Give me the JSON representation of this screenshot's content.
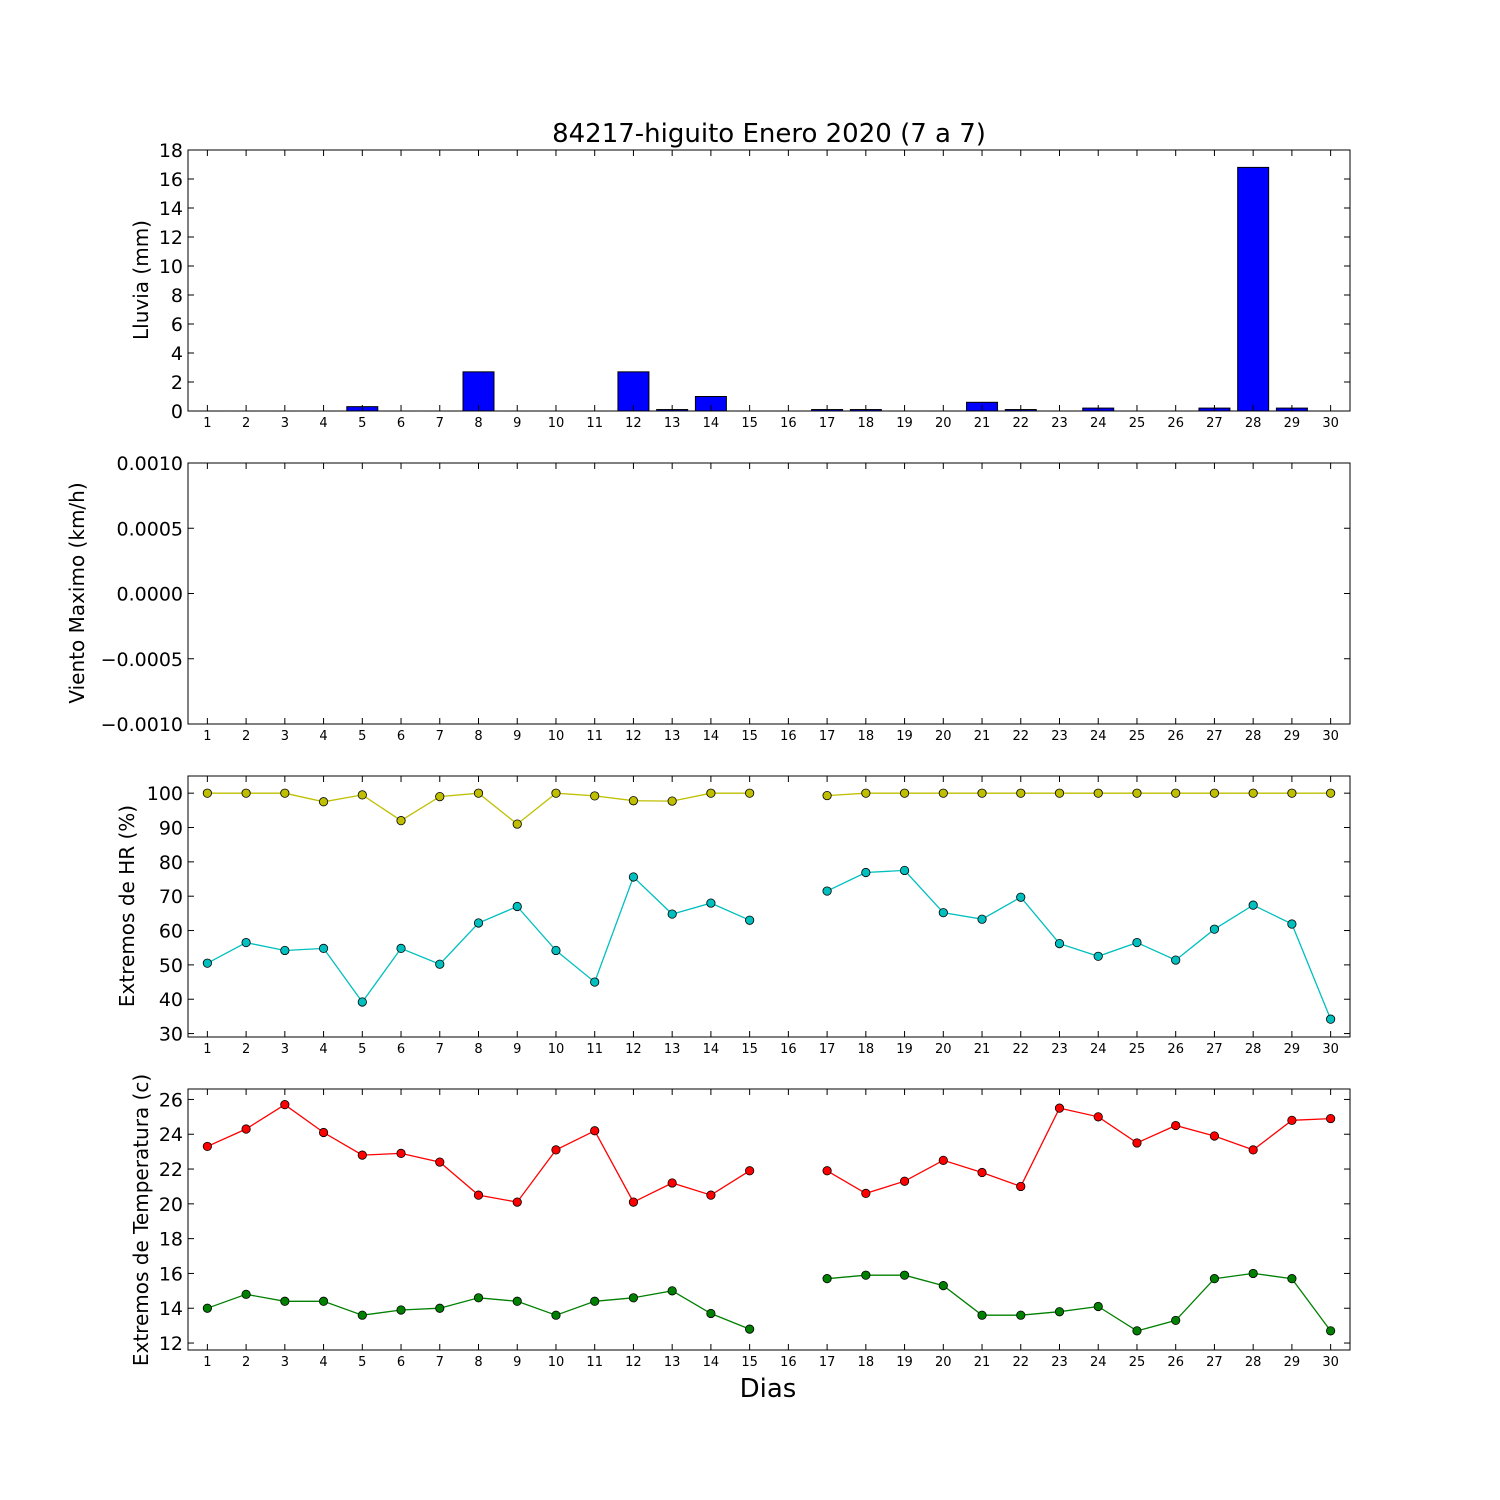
{
  "chart_data": [
    {
      "type": "bar",
      "title": "84217-higuito Enero 2020  (7 a 7)",
      "ylabel": "Lluvia (mm)",
      "xlabel": "",
      "ylim": [
        0,
        18
      ],
      "yticks": [
        "0",
        "2",
        "4",
        "6",
        "8",
        "10",
        "12",
        "14",
        "16",
        "18"
      ],
      "x": [
        1,
        2,
        3,
        4,
        5,
        6,
        7,
        8,
        9,
        10,
        11,
        12,
        13,
        14,
        15,
        16,
        17,
        18,
        19,
        20,
        21,
        22,
        23,
        24,
        25,
        26,
        27,
        28,
        29,
        30
      ],
      "xlim": [
        0.5,
        30.5
      ],
      "colors": {
        "bar": "#0000ff"
      },
      "values": [
        0,
        0,
        0,
        0,
        0.3,
        0,
        0,
        2.7,
        0,
        0,
        0,
        2.7,
        0.1,
        1.0,
        0,
        0,
        0.1,
        0.1,
        0,
        0,
        0.6,
        0.1,
        0,
        0.2,
        0,
        0,
        0.2,
        16.8,
        0.2,
        0
      ],
      "grid": false
    },
    {
      "type": "line",
      "ylabel": "Viento Maximo (km/h)",
      "xlabel": "",
      "ylim": [
        -0.001,
        0.001
      ],
      "yticks": [
        "−0.0010",
        "−0.0005",
        "0.0000",
        "0.0005",
        "0.0010"
      ],
      "x": [
        1,
        2,
        3,
        4,
        5,
        6,
        7,
        8,
        9,
        10,
        11,
        12,
        13,
        14,
        15,
        16,
        17,
        18,
        19,
        20,
        21,
        22,
        23,
        24,
        25,
        26,
        27,
        28,
        29,
        30
      ],
      "xlim": [
        0.5,
        30.5
      ],
      "series": [],
      "grid": false
    },
    {
      "type": "line",
      "ylabel": "Extremos de HR (%)",
      "xlabel": "",
      "ylim": [
        29,
        105
      ],
      "yticks": [
        "30",
        "40",
        "50",
        "60",
        "70",
        "80",
        "90",
        "100"
      ],
      "x": [
        1,
        2,
        3,
        4,
        5,
        6,
        7,
        8,
        9,
        10,
        11,
        12,
        13,
        14,
        15,
        16,
        17,
        18,
        19,
        20,
        21,
        22,
        23,
        24,
        25,
        26,
        27,
        28,
        29,
        30
      ],
      "xlim": [
        0.5,
        30.5
      ],
      "colors": {
        "max": "#bfbf00",
        "min": "#00bfbf"
      },
      "series": [
        {
          "key": "max",
          "values": [
            100,
            100,
            100,
            97.5,
            99.5,
            92,
            99,
            100,
            91,
            100,
            99.2,
            97.8,
            97.7,
            100,
            100,
            null,
            99.3,
            100,
            100,
            100,
            100,
            100,
            100,
            100,
            100,
            100,
            100,
            100,
            100,
            100
          ]
        },
        {
          "key": "min",
          "values": [
            50.5,
            56.5,
            54.2,
            54.8,
            39.2,
            54.8,
            50.2,
            62.2,
            67,
            54.2,
            45,
            75.6,
            64.8,
            68,
            63,
            null,
            71.5,
            76.9,
            77.5,
            65.2,
            63.3,
            69.7,
            56.2,
            52.5,
            56.5,
            51.4,
            60.4,
            67.4,
            61.9,
            34.2
          ]
        }
      ],
      "grid": false
    },
    {
      "type": "line",
      "ylabel": "Extremos de Temperatura (c)",
      "xlabel": "Dias",
      "ylim": [
        11.6,
        26.6
      ],
      "yticks": [
        "12",
        "14",
        "16",
        "18",
        "20",
        "22",
        "24",
        "26"
      ],
      "x": [
        1,
        2,
        3,
        4,
        5,
        6,
        7,
        8,
        9,
        10,
        11,
        12,
        13,
        14,
        15,
        16,
        17,
        18,
        19,
        20,
        21,
        22,
        23,
        24,
        25,
        26,
        27,
        28,
        29,
        30
      ],
      "xlim": [
        0.5,
        30.5
      ],
      "colors": {
        "max": "#ff0000",
        "min": "#008000"
      },
      "series": [
        {
          "key": "max",
          "values": [
            23.3,
            24.3,
            25.7,
            24.1,
            22.8,
            22.9,
            22.4,
            20.5,
            20.1,
            23.1,
            24.2,
            20.1,
            21.2,
            20.5,
            21.9,
            null,
            21.9,
            20.6,
            21.3,
            22.5,
            21.8,
            21.0,
            25.5,
            25.0,
            23.5,
            24.5,
            23.9,
            23.1,
            24.8,
            24.9
          ]
        },
        {
          "key": "min",
          "values": [
            14.0,
            14.8,
            14.4,
            14.4,
            13.6,
            13.9,
            14.0,
            14.6,
            14.4,
            13.6,
            14.4,
            14.6,
            15.0,
            13.7,
            12.8,
            null,
            15.7,
            15.9,
            15.9,
            15.3,
            13.6,
            13.6,
            13.8,
            14.1,
            12.7,
            13.3,
            15.7,
            16.0,
            15.7,
            12.7
          ]
        }
      ],
      "grid": false
    }
  ]
}
